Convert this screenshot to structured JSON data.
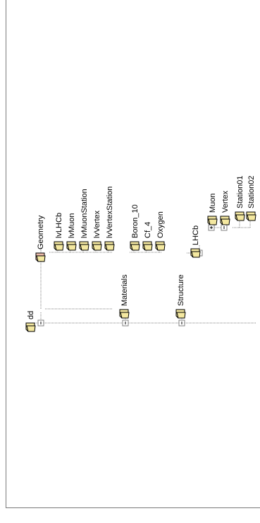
{
  "tree": {
    "root": {
      "label": "dd",
      "icon": "folder-open-icon",
      "expander": "minus"
    },
    "groups": [
      {
        "label": "Geometry",
        "icon": "folder-open-icon",
        "expander": "minus",
        "children": [
          "lvLHCb",
          "lvMuon",
          "lvMuonStation",
          "lvVertex",
          "lvVertexStation"
        ]
      },
      {
        "label": "Materials",
        "icon": "folder-open-icon",
        "expander": "minus",
        "children": [
          "Boron_10",
          "Cf_4",
          "Oxygen"
        ]
      },
      {
        "label": "Structure",
        "icon": "folder-open-icon",
        "expander": "minus",
        "subgroups": [
          {
            "label": "LHCb",
            "icon": "folder-open-icon",
            "expander": "minus",
            "subgroups": [
              {
                "label": "Muon",
                "expander": "plus",
                "children": []
              },
              {
                "label": "Vertex",
                "expander": "minus",
                "children": [
                  "Station01",
                  "Station02"
                ]
              }
            ]
          }
        ]
      }
    ]
  },
  "colors": {
    "folder_fill": "#f4e8a0",
    "folder_edge": "#000000",
    "tree_line": "#808080",
    "geometry_folder": "#e9b8a8"
  }
}
